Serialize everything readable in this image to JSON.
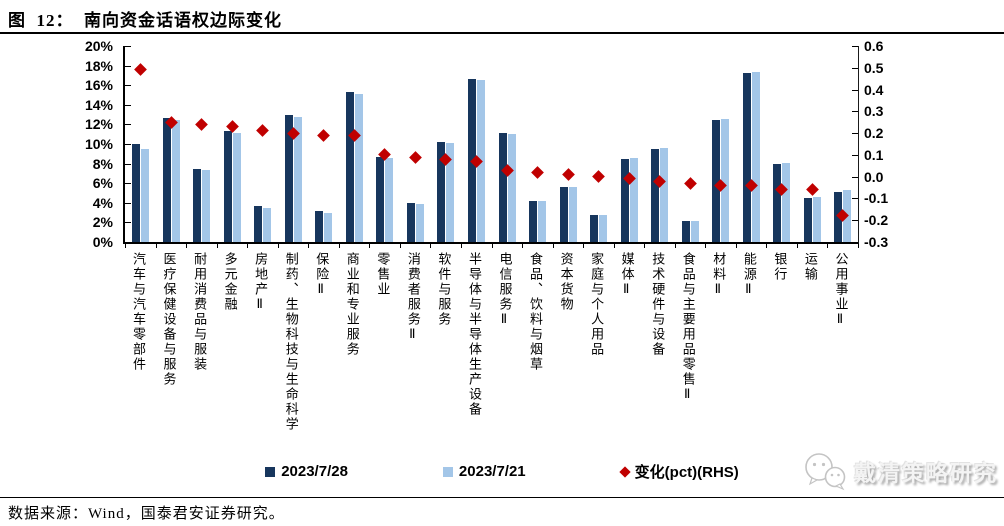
{
  "title": "图  12：  南向资金话语权边际变化",
  "source": "数据来源：Wind，国泰君安证券研究。",
  "watermark": {
    "icon": "wechat-logo-icon",
    "text": "戴清策略研究"
  },
  "colors": {
    "bar_dark": "#17365D",
    "bar_light": "#A3C6E8",
    "diamond_red": "#C00000",
    "axis": "#000000",
    "watermark_gray": "#c4c4c4"
  },
  "chart_data": {
    "type": "bar",
    "title": "南向资金话语权边际变化",
    "categories": [
      "汽车与汽车零部件",
      "医疗保健设备与服务",
      "耐用消费品与服装",
      "多元金融",
      "房地产Ⅱ",
      "制药、生物科技与生命科学",
      "保险Ⅱ",
      "商业和专业服务",
      "零售业",
      "消费者服务Ⅱ",
      "软件与服务",
      "半导体与半导体生产设备",
      "电信服务Ⅱ",
      "食品、饮料与烟草",
      "资本货物",
      "家庭与个人用品",
      "媒体Ⅱ",
      "技术硬件与设备",
      "食品与主要用品零售Ⅱ",
      "材料Ⅱ",
      "能源Ⅱ",
      "银行",
      "运输",
      "公用事业Ⅱ"
    ],
    "series": [
      {
        "name": "2023/7/28",
        "type": "bar",
        "axis": "left",
        "marker": "square",
        "color": "#17365D",
        "values": [
          10.0,
          12.7,
          7.5,
          11.3,
          3.7,
          13.0,
          3.2,
          15.3,
          8.7,
          4.0,
          10.2,
          16.6,
          11.1,
          4.2,
          5.6,
          2.8,
          8.5,
          9.5,
          2.1,
          12.5,
          17.2,
          8.0,
          4.5,
          5.1
        ]
      },
      {
        "name": "2023/7/21",
        "type": "bar",
        "axis": "left",
        "marker": "square",
        "color": "#A3C6E8",
        "values": [
          9.5,
          12.5,
          7.3,
          11.1,
          3.5,
          12.8,
          3.0,
          15.1,
          8.6,
          3.9,
          10.1,
          16.5,
          11.0,
          4.2,
          5.6,
          2.8,
          8.6,
          9.6,
          2.1,
          12.6,
          17.3,
          8.1,
          4.6,
          5.3
        ]
      },
      {
        "name": "变化(pct)(RHS)",
        "type": "scatter",
        "axis": "right",
        "marker": "diamond",
        "color": "#C00000",
        "values": [
          0.49,
          0.25,
          0.24,
          0.23,
          0.21,
          0.2,
          0.19,
          0.19,
          0.1,
          0.09,
          0.08,
          0.07,
          0.03,
          0.02,
          0.01,
          0.0,
          -0.01,
          -0.02,
          -0.03,
          -0.04,
          -0.04,
          -0.06,
          -0.06,
          -0.18
        ]
      }
    ],
    "left_axis": {
      "min": 0,
      "max": 20,
      "step": 2,
      "format": "percent",
      "ticks": [
        "20%",
        "18%",
        "16%",
        "14%",
        "12%",
        "10%",
        "8%",
        "6%",
        "4%",
        "2%",
        "0%"
      ]
    },
    "right_axis": {
      "min": -0.3,
      "max": 0.6,
      "step": 0.1,
      "ticks": [
        "0.6",
        "0.5",
        "0.4",
        "0.3",
        "0.2",
        "0.1",
        "0.0",
        "-0.1",
        "-0.2",
        "-0.3"
      ]
    },
    "grid": false,
    "legend_position": "bottom"
  }
}
